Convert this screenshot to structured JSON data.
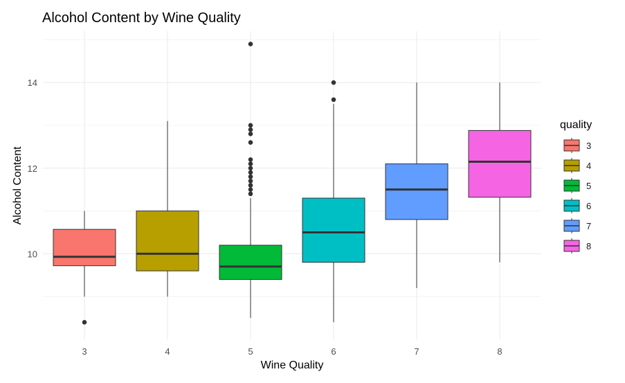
{
  "chart_data": {
    "type": "boxplot",
    "title": "Alcohol Content by Wine Quality",
    "xlabel": "Wine Quality",
    "ylabel": "Alcohol Content",
    "ylim": [
      8.0,
      15.2
    ],
    "yticks": [
      10,
      12,
      14
    ],
    "grid": true,
    "legend": {
      "title": "quality",
      "position": "right"
    },
    "categories": [
      "3",
      "4",
      "5",
      "6",
      "7",
      "8"
    ],
    "series": [
      {
        "category": "3",
        "color": "#F8766D",
        "min": 9.0,
        "q1": 9.72,
        "median": 9.93,
        "q3": 10.57,
        "max": 11.0,
        "outliers": [
          8.4
        ]
      },
      {
        "category": "4",
        "color": "#B79F00",
        "min": 9.0,
        "q1": 9.6,
        "median": 10.0,
        "q3": 11.0,
        "max": 13.1,
        "outliers": []
      },
      {
        "category": "5",
        "color": "#00BA38",
        "min": 8.5,
        "q1": 9.4,
        "median": 9.7,
        "q3": 10.2,
        "max": 11.3,
        "outliers": [
          11.4,
          11.5,
          11.6,
          11.7,
          11.8,
          11.9,
          12.0,
          12.1,
          12.2,
          12.6,
          12.8,
          12.9,
          13.0,
          14.9
        ]
      },
      {
        "category": "6",
        "color": "#00BFC4",
        "min": 8.4,
        "q1": 9.8,
        "median": 10.5,
        "q3": 11.3,
        "max": 13.5,
        "outliers": [
          13.6,
          14.0
        ]
      },
      {
        "category": "7",
        "color": "#619CFF",
        "min": 9.2,
        "q1": 10.8,
        "median": 11.5,
        "q3": 12.1,
        "max": 14.0,
        "outliers": []
      },
      {
        "category": "8",
        "color": "#F564E3",
        "min": 9.8,
        "q1": 11.32,
        "median": 12.15,
        "q3": 12.88,
        "max": 14.0,
        "outliers": []
      }
    ]
  }
}
